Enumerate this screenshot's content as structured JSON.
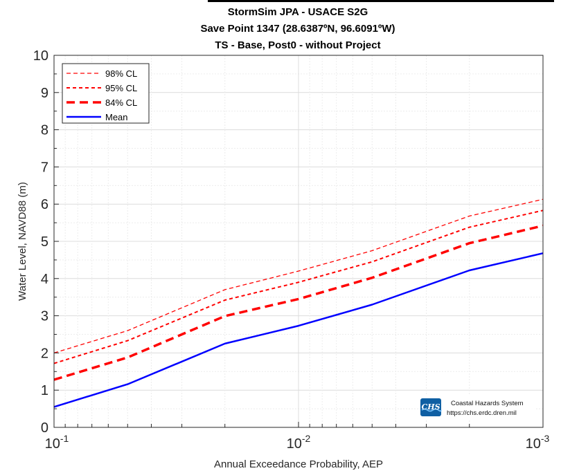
{
  "chart_data": {
    "type": "line",
    "title": "StormSim JPA - USACE S2G",
    "subtitle_lines": [
      "Save Point 1347 (28.6387ºN, 96.6091ºW)",
      "TS - Base, Post0 - without Project"
    ],
    "xlabel": "Annual Exceedance Probability, AEP",
    "ylabel": "Water Level, NAVD88 (m)",
    "x_scale": "log",
    "x_reversed": true,
    "xlim": [
      0.1,
      0.001
    ],
    "ylim": [
      0,
      10
    ],
    "grid": true,
    "legend_position": "top-left",
    "x_tick_labels": [
      {
        "value": 0.1,
        "base": "10",
        "exp": "-1"
      },
      {
        "value": 0.01,
        "base": "10",
        "exp": "-2"
      },
      {
        "value": 0.001,
        "base": "10",
        "exp": "-3"
      }
    ],
    "y_ticks": [
      0,
      1,
      2,
      3,
      4,
      5,
      6,
      7,
      8,
      9,
      10
    ],
    "x": [
      0.1,
      0.05,
      0.02,
      0.01,
      0.005,
      0.002,
      0.001
    ],
    "series": [
      {
        "name": "98% CL",
        "color": "#ff0000",
        "style": "dashed-thin",
        "values": [
          2.0,
          2.6,
          3.7,
          4.2,
          4.75,
          5.68,
          6.13
        ]
      },
      {
        "name": "95% CL",
        "color": "#ff0000",
        "style": "dashed-medium",
        "values": [
          1.72,
          2.33,
          3.42,
          3.9,
          4.45,
          5.38,
          5.83
        ]
      },
      {
        "name": "84% CL",
        "color": "#ff0000",
        "style": "dashed-thick",
        "values": [
          1.28,
          1.88,
          2.99,
          3.45,
          4.02,
          4.95,
          5.42
        ]
      },
      {
        "name": "Mean",
        "color": "#0000ff",
        "style": "solid",
        "values": [
          0.55,
          1.16,
          2.25,
          2.73,
          3.3,
          4.22,
          4.68
        ]
      }
    ]
  },
  "logo": {
    "mark": "CHS",
    "line1": "Coastal Hazards System",
    "line2": "https://chs.erdc.dren.mil"
  }
}
